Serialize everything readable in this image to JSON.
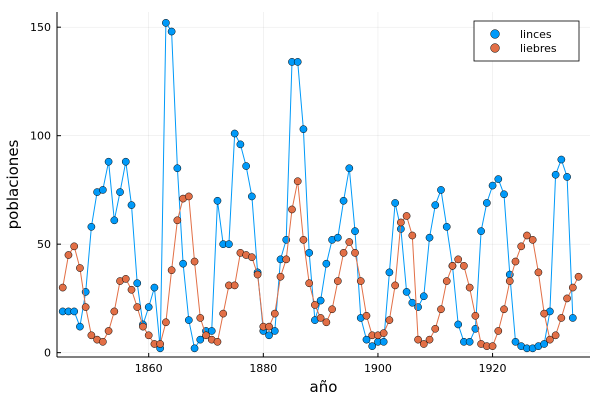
{
  "chart_data": {
    "type": "scatter",
    "mode": "lines+markers",
    "xlabel": "año",
    "ylabel": "poblaciones",
    "xlim": [
      1844,
      1937
    ],
    "ylim": [
      -2,
      157
    ],
    "x_ticks": [
      1860,
      1880,
      1900,
      1920
    ],
    "y_ticks": [
      0,
      50,
      100,
      150
    ],
    "grid": true,
    "legend_position": "top-right",
    "x": [
      1845,
      1846,
      1847,
      1848,
      1849,
      1850,
      1851,
      1852,
      1853,
      1854,
      1855,
      1856,
      1857,
      1858,
      1859,
      1860,
      1861,
      1862,
      1863,
      1864,
      1865,
      1866,
      1867,
      1868,
      1869,
      1870,
      1871,
      1872,
      1873,
      1874,
      1875,
      1876,
      1877,
      1878,
      1879,
      1880,
      1881,
      1882,
      1883,
      1884,
      1885,
      1886,
      1887,
      1888,
      1889,
      1890,
      1891,
      1892,
      1893,
      1894,
      1895,
      1896,
      1897,
      1898,
      1899,
      1900,
      1901,
      1902,
      1903,
      1904,
      1905,
      1906,
      1907,
      1908,
      1909,
      1910,
      1911,
      1912,
      1913,
      1914,
      1915,
      1916,
      1917,
      1918,
      1919,
      1920,
      1921,
      1922,
      1923,
      1924,
      1925,
      1926,
      1927,
      1928,
      1929,
      1930,
      1931,
      1932,
      1933,
      1934,
      1935
    ],
    "series": [
      {
        "name": "lynx",
        "label": "linces",
        "color": "#009af9",
        "values": [
          19,
          19,
          19,
          12,
          28,
          58,
          74,
          75,
          88,
          61,
          74,
          88,
          68,
          32,
          13,
          21,
          30,
          2,
          152,
          148,
          85,
          41,
          15,
          2,
          6,
          10,
          10,
          70,
          50,
          50,
          101,
          96,
          86,
          72,
          37,
          10,
          8,
          10,
          43,
          52,
          134,
          134,
          103,
          46,
          15,
          24,
          41,
          52,
          53,
          70,
          85,
          56,
          16,
          6,
          3,
          5,
          5,
          37,
          69,
          57,
          28,
          23,
          21,
          26,
          53,
          68,
          75,
          58,
          40,
          13,
          5,
          5,
          11,
          56,
          69,
          77,
          80,
          73,
          36,
          5,
          3,
          2,
          2,
          3,
          4,
          19,
          82,
          89,
          81,
          16,
          null
        ],
        "note": "per-year values"
      },
      {
        "name": "hares",
        "label": "liebres",
        "color": "#e26f46",
        "values": [
          30,
          45,
          49,
          39,
          21,
          8,
          6,
          5,
          10,
          19,
          33,
          34,
          29,
          21,
          12,
          8,
          4,
          4,
          14,
          38,
          61,
          71,
          72,
          42,
          16,
          8,
          6,
          5,
          18,
          31,
          31,
          46,
          45,
          44,
          36,
          12,
          12,
          18,
          35,
          43,
          66,
          79,
          52,
          32,
          22,
          16,
          14,
          20,
          33,
          46,
          51,
          46,
          33,
          17,
          8,
          8,
          9,
          15,
          31,
          60,
          63,
          54,
          6,
          4,
          6,
          11,
          20,
          33,
          40,
          43,
          40,
          30,
          17,
          4,
          3,
          3,
          10,
          20,
          33,
          42,
          49,
          54,
          52,
          37,
          18,
          6,
          8,
          16,
          25,
          30,
          35
        ]
      }
    ]
  }
}
